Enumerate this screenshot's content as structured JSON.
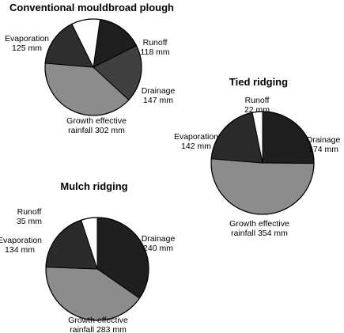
{
  "chart_data": [
    {
      "type": "pie",
      "title": "Conventional mouldbroad plough",
      "start_angle_deg": 8,
      "slices": [
        {
          "line1": "Runoff",
          "line2": "118 mm",
          "value": 118,
          "color": "#1f1f1f"
        },
        {
          "line1": "Drainage",
          "line2": "147 mm",
          "value": 147,
          "color": "#404040"
        },
        {
          "line1": "Growth effective",
          "line2": "rainfall 302 mm",
          "value": 302,
          "color": "#8c8c8c"
        },
        {
          "line1": "Evaporation",
          "line2": "125 mm",
          "value": 125,
          "color": "#2e2e2e"
        },
        {
          "line1": "",
          "line2": "",
          "value": 73,
          "color": "#ffffff"
        }
      ]
    },
    {
      "type": "pie",
      "title": "Tied ridging",
      "start_angle_deg": 0,
      "slices": [
        {
          "line1": "Drainage",
          "line2": "174 mm",
          "value": 174,
          "color": "#1f1f1f"
        },
        {
          "line1": "Growth effective",
          "line2": "rainfall 354 mm",
          "value": 354,
          "color": "#8c8c8c"
        },
        {
          "line1": "Evaporation",
          "line2": "142 mm",
          "value": 142,
          "color": "#2b2b2b"
        },
        {
          "line1": "Runoff",
          "line2": "22 mm",
          "value": 22,
          "color": "#ffffff"
        }
      ]
    },
    {
      "type": "pie",
      "title": "Mulch ridging",
      "start_angle_deg": 0,
      "slices": [
        {
          "line1": "Drainage",
          "line2": "240 mm",
          "value": 240,
          "color": "#1f1f1f"
        },
        {
          "line1": "Growth effective",
          "line2": "rainfall 283 mm",
          "value": 283,
          "color": "#8c8c8c"
        },
        {
          "line1": "Evaporation",
          "line2": "134 mm",
          "value": 134,
          "color": "#2b2b2b"
        },
        {
          "line1": "Runoff",
          "line2": "35 mm",
          "value": 35,
          "color": "#ffffff"
        }
      ]
    }
  ]
}
